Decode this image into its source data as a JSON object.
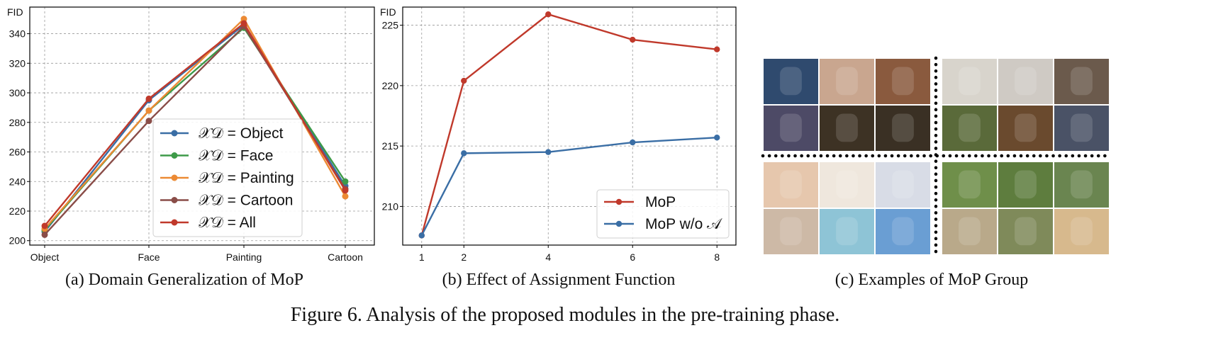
{
  "colors": {
    "blue": "#3a6ea5",
    "green": "#3d9a48",
    "orange": "#ec8a34",
    "brown": "#8a4d48",
    "red": "#c0392b"
  },
  "chart_data": [
    {
      "type": "line",
      "ylabel": "FID",
      "categories": [
        "Object",
        "Face",
        "Painting",
        "Cartoon"
      ],
      "ylim": [
        197,
        358
      ],
      "yticks": [
        200,
        220,
        240,
        260,
        280,
        300,
        320,
        340
      ],
      "grid": true,
      "legend_position": "lower-right",
      "series": [
        {
          "name": "𝒳𝒟 = Object",
          "color": "#3a6ea5",
          "values": [
            206,
            295,
            346,
            237
          ]
        },
        {
          "name": "𝒳𝒟 = Face",
          "color": "#3d9a48",
          "values": [
            207,
            288,
            344,
            240
          ]
        },
        {
          "name": "𝒳𝒟 = Painting",
          "color": "#ec8a34",
          "values": [
            208,
            288,
            350,
            230
          ]
        },
        {
          "name": "𝒳𝒟 = Cartoon",
          "color": "#8a4d48",
          "values": [
            204,
            281,
            345,
            235
          ]
        },
        {
          "name": "𝒳𝒟 = All",
          "color": "#c0392b",
          "values": [
            210,
            296,
            347,
            234
          ]
        }
      ]
    },
    {
      "type": "line",
      "ylabel": "FID",
      "x": [
        1,
        2,
        4,
        6,
        8
      ],
      "xlim": [
        0.55,
        8.45
      ],
      "xticks": [
        1,
        2,
        4,
        6,
        8
      ],
      "ylim": [
        206.8,
        226.5
      ],
      "yticks": [
        210,
        215,
        220,
        225
      ],
      "grid": true,
      "legend_position": "lower-right",
      "series": [
        {
          "name": "MoP",
          "color": "#c0392b",
          "values": [
            207.6,
            220.4,
            225.9,
            223.8,
            223.0
          ]
        },
        {
          "name": "MoP w/o 𝒜",
          "color": "#3a6ea5",
          "values": [
            207.6,
            214.4,
            214.5,
            215.3,
            215.7
          ]
        }
      ]
    }
  ],
  "captions": {
    "a": "(a) Domain Generalization of MoP",
    "b": "(b) Effect of Assignment Function",
    "c": "(c) Examples of MoP Group",
    "figure": "Figure 6. Analysis of the proposed modules in the pre-training phase."
  },
  "image_grid": {
    "tiles_tl": [
      "#2f4a6e",
      "#c9a68f",
      "#8a5a3e",
      "#4d4a66",
      "#3d3224",
      "#3a3024"
    ],
    "tiles_tr": [
      "#d8d4cc",
      "#cfcac4",
      "#6b5a4c",
      "#5a6a3a",
      "#6a4a2e",
      "#4a5266"
    ],
    "tiles_bl": [
      "#e6c7ad",
      "#efe7dd",
      "#d8dce6",
      "#cdb9a6",
      "#8ec4d6",
      "#6a9ed3"
    ],
    "tiles_br": [
      "#6f8f4a",
      "#5e7d3e",
      "#6a8550",
      "#b9a98a",
      "#7f8a5a",
      "#d7b98d"
    ]
  }
}
